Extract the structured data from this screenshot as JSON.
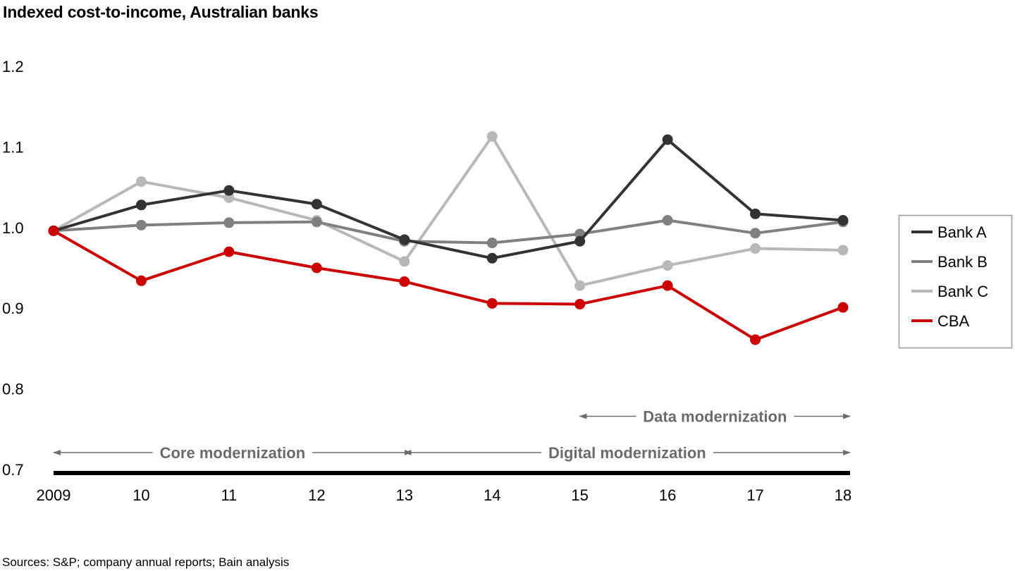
{
  "chart_data": {
    "type": "line",
    "title": "Indexed cost-to-income, Australian banks",
    "x": [
      "2009",
      "10",
      "11",
      "12",
      "13",
      "14",
      "15",
      "16",
      "17",
      "18"
    ],
    "ylim": [
      0.7,
      1.2
    ],
    "yticks": [
      "1.2",
      "1.1",
      "1.0",
      "0.9",
      "0.8",
      "0.7"
    ],
    "ytick_values": [
      1.2,
      1.1,
      1.0,
      0.9,
      0.8,
      0.7
    ],
    "grid": false,
    "legend_position": "right",
    "series": [
      {
        "name": "Bank A",
        "color": "#333333",
        "values": [
          0.996,
          1.028,
          1.046,
          1.029,
          0.985,
          0.962,
          0.983,
          1.109,
          1.017,
          1.009
        ]
      },
      {
        "name": "Bank B",
        "color": "#808080",
        "values": [
          0.996,
          1.003,
          1.006,
          1.007,
          0.983,
          0.981,
          0.992,
          1.009,
          0.993,
          1.007
        ]
      },
      {
        "name": "Bank C",
        "color": "#b8b8b8",
        "values": [
          0.996,
          1.057,
          1.037,
          1.009,
          0.958,
          1.113,
          0.928,
          0.953,
          0.974,
          0.972
        ]
      },
      {
        "name": "CBA",
        "color": "#cc0000",
        "values": [
          0.996,
          0.934,
          0.97,
          0.95,
          0.933,
          0.906,
          0.905,
          0.928,
          0.861,
          0.901
        ]
      }
    ],
    "annotations": [
      {
        "label": "Core modernization",
        "from": "2009",
        "to": "13",
        "y": 0.721
      },
      {
        "label": "Digital modernization",
        "from": "13",
        "to": "18",
        "y": 0.721
      },
      {
        "label": "Data modernization",
        "from": "15",
        "to": "18",
        "y": 0.766
      }
    ]
  },
  "source_note": "Sources: S&P; company annual reports; Bain analysis"
}
